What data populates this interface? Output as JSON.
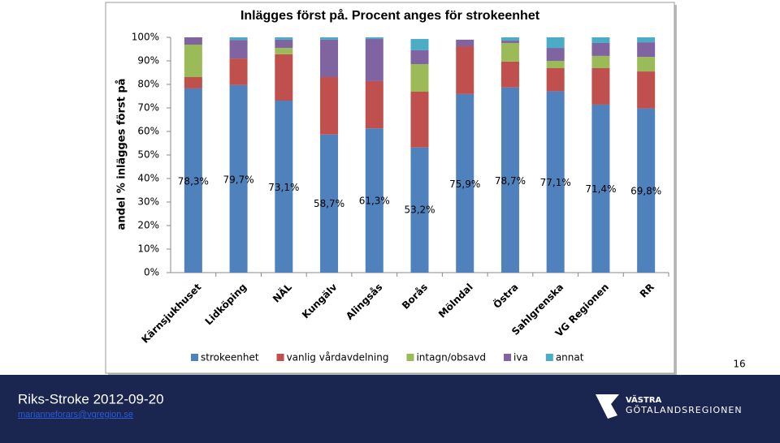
{
  "chart_data": {
    "type": "stacked_bar",
    "title": "Inlägges först på. Procent anges för strokeenhet",
    "ylabel": "andel % inlägges först på",
    "categories": [
      "Kärnsjukhuset",
      "Lidköping",
      "NÄL",
      "Kungälv",
      "Alingsås",
      "Borås",
      "Mölndal",
      "Östra",
      "Sahlgrenska",
      "VG Regionen",
      "RR"
    ],
    "series": [
      {
        "name": "strokeenhet",
        "color": "#4f81bd",
        "values": [
          78.3,
          79.7,
          73.1,
          58.7,
          61.3,
          53.2,
          75.9,
          78.7,
          77.1,
          71.4,
          69.8
        ],
        "value_labels": [
          "78,3%",
          "79,7%",
          "73,1%",
          "58,7%",
          "61,3%",
          "53,2%",
          "75,9%",
          "78,7%",
          "77,1%",
          "71,4%",
          "69,8%"
        ]
      },
      {
        "name": "vanlig vårdavdelning",
        "color": "#c0504d",
        "values": [
          4.8,
          11.3,
          19.7,
          24.4,
          20.1,
          23.7,
          20.3,
          11.0,
          9.8,
          15.5,
          15.7
        ]
      },
      {
        "name": "intagn/obsavd",
        "color": "#9bbb59",
        "values": [
          13.8,
          0,
          2.7,
          0,
          0,
          11.7,
          0,
          7.9,
          3.1,
          5.2,
          6.2
        ]
      },
      {
        "name": "iva",
        "color": "#8064a2",
        "values": [
          3.1,
          7.9,
          3.5,
          15.9,
          17.9,
          5.9,
          2.8,
          1.0,
          5.5,
          5.5,
          6.2
        ]
      },
      {
        "name": "annat",
        "color": "#4bacc6",
        "values": [
          0,
          1.1,
          1.0,
          1.0,
          0.7,
          4.8,
          0,
          1.4,
          4.5,
          2.4,
          2.1
        ]
      }
    ],
    "ylim": [
      0,
      100
    ],
    "yticks": [
      {
        "value": 0,
        "label": "0%"
      },
      {
        "value": 10,
        "label": "10%"
      },
      {
        "value": 20,
        "label": "20%"
      },
      {
        "value": 30,
        "label": "30%"
      },
      {
        "value": 40,
        "label": "40%"
      },
      {
        "value": 50,
        "label": "50%"
      },
      {
        "value": 60,
        "label": "60%"
      },
      {
        "value": 70,
        "label": "70%"
      },
      {
        "value": 80,
        "label": "80%"
      },
      {
        "value": 90,
        "label": "90%"
      },
      {
        "value": 100,
        "label": "100%"
      }
    ],
    "legend": "bottom"
  },
  "slide": {
    "page_number": "16",
    "footer": "Riks-Stroke 2012-09-20",
    "email": "marianneforars@vgregion.se",
    "logo_line1": "VÄSTRA",
    "logo_line2": "GÖTALANDSREGIONEN"
  }
}
